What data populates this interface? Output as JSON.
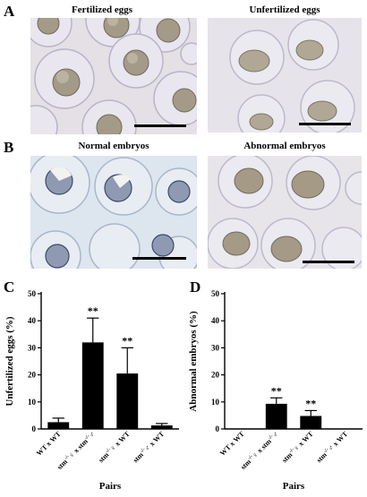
{
  "panels": {
    "A": {
      "letter": "A",
      "left_title": "Fertilized eggs",
      "right_title": "Unfertilized eggs"
    },
    "B": {
      "letter": "B",
      "left_title": "Normal embryos",
      "right_title": "Abnormal embryos"
    },
    "C": {
      "letter": "C"
    },
    "D": {
      "letter": "D"
    }
  },
  "colors": {
    "photo_bg_a_left": "#e4e0e6",
    "photo_bg_a_right": "#e6e4ea",
    "photo_bg_b": "#dde6ef",
    "chorion": "#c9c6d6",
    "yolk": "#9c9482",
    "bar": "#000000"
  },
  "chart_data": [
    {
      "type": "bar",
      "panel": "C",
      "title": "",
      "xlabel": "Pairs",
      "ylabel": "Unfertilized eggs  (%)",
      "ylim": [
        0,
        50
      ],
      "yticks": [
        0,
        10,
        20,
        30,
        40,
        50
      ],
      "categories": [
        {
          "prefix": "WT x WT",
          "sup1": "",
          "sym1": "",
          "mid": "",
          "sup2": "",
          "sym2": "",
          "suffix": ""
        },
        {
          "prefix": "stm",
          "sup1": "-/-",
          "sym1": "♀",
          "mid": " x stm",
          "sup2": "-/-",
          "sym2": "♂",
          "suffix": ""
        },
        {
          "prefix": "stm",
          "sup1": "-/-",
          "sym1": "♀",
          "mid": " x WT",
          "sup2": "",
          "sym2": "",
          "suffix": ""
        },
        {
          "prefix": "stm",
          "sup1": "-/-",
          "sym1": "♂",
          "mid": " x WT",
          "sup2": "",
          "sym2": "",
          "suffix": ""
        }
      ],
      "values": [
        2.5,
        32,
        20.5,
        1.3
      ],
      "errors": [
        1.5,
        9,
        9.5,
        0.7
      ],
      "annotations": [
        "",
        "**",
        "**",
        ""
      ]
    },
    {
      "type": "bar",
      "panel": "D",
      "title": "",
      "xlabel": "Pairs",
      "ylabel": "Abnormal embryos  (%)",
      "ylim": [
        0,
        50
      ],
      "yticks": [
        0,
        10,
        20,
        30,
        40,
        50
      ],
      "categories": [
        {
          "prefix": "WT x WT",
          "sup1": "",
          "sym1": "",
          "mid": "",
          "sup2": "",
          "sym2": "",
          "suffix": ""
        },
        {
          "prefix": "stm",
          "sup1": "-/-",
          "sym1": "♀",
          "mid": " x stm",
          "sup2": "-/-",
          "sym2": "♂",
          "suffix": ""
        },
        {
          "prefix": "stm",
          "sup1": "-/-",
          "sym1": "♀",
          "mid": " x WT",
          "sup2": "",
          "sym2": "",
          "suffix": ""
        },
        {
          "prefix": "stm",
          "sup1": "-/-",
          "sym1": "♂",
          "mid": " x WT",
          "sup2": "",
          "sym2": "",
          "suffix": ""
        }
      ],
      "values": [
        0,
        9.3,
        4.8,
        0
      ],
      "errors": [
        0,
        2.2,
        2.0,
        0
      ],
      "annotations": [
        "",
        "**",
        "**",
        ""
      ]
    }
  ]
}
